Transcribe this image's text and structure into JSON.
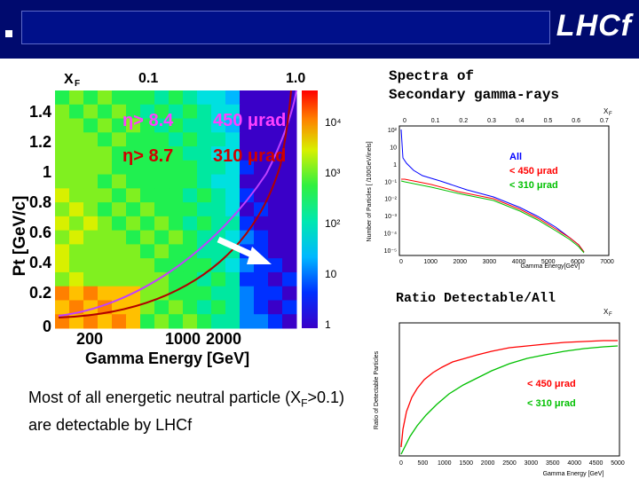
{
  "header": {
    "logo": "LHCf"
  },
  "heatmap": {
    "xf_label": "X",
    "xf_sub": "F",
    "xf_tick_1": "0.1",
    "xf_tick_2": "1.0",
    "y_label": "Pt [GeV/c]",
    "y_ticks": [
      "1.4",
      "1.2",
      "1",
      "0.8",
      "0.6",
      "0.4",
      "0.2",
      "0"
    ],
    "x_ticks": [
      "200",
      "1000",
      "2000"
    ],
    "x_label": "Gamma Energy [GeV]",
    "eta1": "η> 8.4",
    "eta1_angle": "450 μrad",
    "eta2": "η> 8.7",
    "eta2_angle": "310 μrad",
    "scale_labels": [
      "10⁴",
      "10³",
      "10²",
      "10",
      "1"
    ]
  },
  "spectra": {
    "title_line1": "Spectra of",
    "title_line2": "Secondary gamma-rays",
    "top_axis_label": "X",
    "top_axis_sub": "F",
    "top_ticks": [
      "0",
      "0.1",
      "0.2",
      "0.3",
      "0.4",
      "0.5",
      "0.6",
      "0.7"
    ],
    "y_label": "Number of Particles [ /100GeV/inels]",
    "y_ticks": [
      "10²",
      "10",
      "1",
      "10⁻¹",
      "10⁻²",
      "10⁻³",
      "10⁻⁴",
      "10⁻⁵"
    ],
    "x_ticks": [
      "0",
      "1000",
      "2000",
      "3000",
      "4000",
      "5000",
      "6000",
      "7000"
    ],
    "x_label": "Gamma Energy[GeV]",
    "legend": [
      {
        "label": "All",
        "color": "#0000ff"
      },
      {
        "label": "< 450 μrad",
        "color": "#ff0000"
      },
      {
        "label": "< 310 μrad",
        "color": "#00c000"
      }
    ]
  },
  "ratio": {
    "title": "Ratio Detectable/All",
    "top_axis_label": "X",
    "top_axis_sub": "F",
    "y_label": "Ratio of Detectable Particles",
    "x_ticks": [
      "0",
      "500",
      "1000",
      "1500",
      "2000",
      "2500",
      "3000",
      "3500",
      "4000",
      "4500",
      "5000"
    ],
    "x_label": "Gamma Energy [GeV]",
    "legend": [
      {
        "label": "< 450 μrad",
        "color": "#ff0000"
      },
      {
        "label": "< 310 μrad",
        "color": "#00c000"
      }
    ]
  },
  "footer": {
    "line1_a": "Most of all energetic neutral particle (X",
    "line1_sub": "F",
    "line1_b": ">0.1)",
    "line2": "are detectable by LHCf"
  }
}
